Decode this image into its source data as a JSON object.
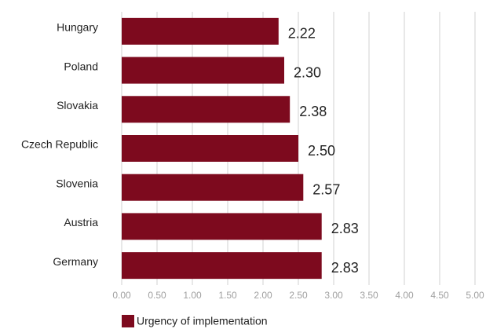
{
  "chart_data": {
    "type": "bar",
    "orientation": "horizontal",
    "categories": [
      "Hungary",
      "Poland",
      "Slovakia",
      "Czech Republic",
      "Slovenia",
      "Austria",
      "Germany"
    ],
    "series": [
      {
        "name": "Urgency of implementation",
        "color": "#7d0a1e",
        "values": [
          2.22,
          2.3,
          2.38,
          2.5,
          2.57,
          2.83,
          2.83
        ],
        "value_labels": [
          "2.22",
          "2.30",
          "2.38",
          "2.50",
          "2.57",
          "2.83",
          "2.83"
        ]
      }
    ],
    "xlim": [
      0,
      5
    ],
    "xticks": [
      {
        "value": 0,
        "label": "0.00"
      },
      {
        "value": 0.5,
        "label": "0.50"
      },
      {
        "value": 1,
        "label": "1.00"
      },
      {
        "value": 1.5,
        "label": "1.50"
      },
      {
        "value": 2,
        "label": "2.00"
      },
      {
        "value": 2.5,
        "label": "2.50"
      },
      {
        "value": 3,
        "label": "3.00"
      },
      {
        "value": 3.5,
        "label": "3.50"
      },
      {
        "value": 4,
        "label": "4.00"
      },
      {
        "value": 4.5,
        "label": "4.50"
      },
      {
        "value": 5,
        "label": "5.00"
      }
    ],
    "grid": true,
    "legend": "bottom-left"
  }
}
